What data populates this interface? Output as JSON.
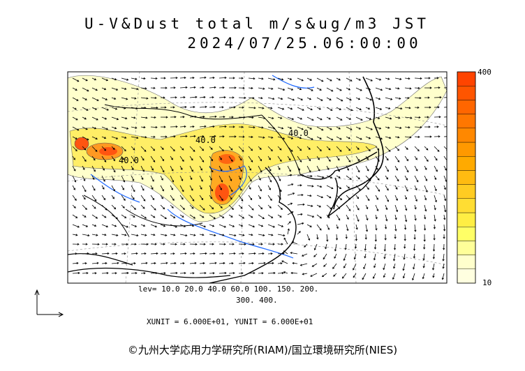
{
  "title_line1": "U-V&Dust total m/s&ug/m3 JST",
  "title_line2": "2024/07/25.06:00:00",
  "legend": {
    "max_label": "400",
    "min_label": "10",
    "colors": [
      "#ffffe0",
      "#ffffcc",
      "#ffff99",
      "#ffff66",
      "#ffee44",
      "#ffdd33",
      "#ffcc22",
      "#ffbb11",
      "#ffaa00",
      "#ff9900",
      "#ff8800",
      "#ff7700",
      "#ff6600",
      "#ff5500",
      "#ff4400"
    ]
  },
  "levels_line1": "lev= 10.0 20.0 40.0 60.0 100. 150. 200.",
  "levels_line2": "300. 400.",
  "units_line": "XUNIT = 6.000E+01, YUNIT = 6.000E+01",
  "contour_labels": [
    "40.0",
    "40.0",
    "40.0"
  ],
  "copyright": "©九州大学応用力学研究所(RIAM)/国立環境研究所(NIES)"
}
